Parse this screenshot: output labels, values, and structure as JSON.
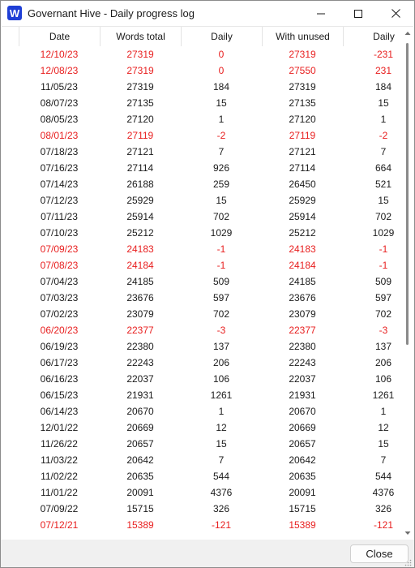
{
  "window": {
    "title": "Governant Hive - Daily progress log",
    "app_icon_letter": "W"
  },
  "table": {
    "columns": [
      "Date",
      "Words total",
      "Daily",
      "With unused",
      "Daily"
    ],
    "rows": [
      {
        "date": "12/10/23",
        "total": "27319",
        "daily": "0",
        "with_unused": "27319",
        "daily_unused": "-231",
        "highlight": true
      },
      {
        "date": "12/08/23",
        "total": "27319",
        "daily": "0",
        "with_unused": "27550",
        "daily_unused": "231",
        "highlight": true
      },
      {
        "date": "11/05/23",
        "total": "27319",
        "daily": "184",
        "with_unused": "27319",
        "daily_unused": "184",
        "highlight": false
      },
      {
        "date": "08/07/23",
        "total": "27135",
        "daily": "15",
        "with_unused": "27135",
        "daily_unused": "15",
        "highlight": false
      },
      {
        "date": "08/05/23",
        "total": "27120",
        "daily": "1",
        "with_unused": "27120",
        "daily_unused": "1",
        "highlight": false
      },
      {
        "date": "08/01/23",
        "total": "27119",
        "daily": "-2",
        "with_unused": "27119",
        "daily_unused": "-2",
        "highlight": true
      },
      {
        "date": "07/18/23",
        "total": "27121",
        "daily": "7",
        "with_unused": "27121",
        "daily_unused": "7",
        "highlight": false
      },
      {
        "date": "07/16/23",
        "total": "27114",
        "daily": "926",
        "with_unused": "27114",
        "daily_unused": "664",
        "highlight": false
      },
      {
        "date": "07/14/23",
        "total": "26188",
        "daily": "259",
        "with_unused": "26450",
        "daily_unused": "521",
        "highlight": false
      },
      {
        "date": "07/12/23",
        "total": "25929",
        "daily": "15",
        "with_unused": "25929",
        "daily_unused": "15",
        "highlight": false
      },
      {
        "date": "07/11/23",
        "total": "25914",
        "daily": "702",
        "with_unused": "25914",
        "daily_unused": "702",
        "highlight": false
      },
      {
        "date": "07/10/23",
        "total": "25212",
        "daily": "1029",
        "with_unused": "25212",
        "daily_unused": "1029",
        "highlight": false
      },
      {
        "date": "07/09/23",
        "total": "24183",
        "daily": "-1",
        "with_unused": "24183",
        "daily_unused": "-1",
        "highlight": true
      },
      {
        "date": "07/08/23",
        "total": "24184",
        "daily": "-1",
        "with_unused": "24184",
        "daily_unused": "-1",
        "highlight": true
      },
      {
        "date": "07/04/23",
        "total": "24185",
        "daily": "509",
        "with_unused": "24185",
        "daily_unused": "509",
        "highlight": false
      },
      {
        "date": "07/03/23",
        "total": "23676",
        "daily": "597",
        "with_unused": "23676",
        "daily_unused": "597",
        "highlight": false
      },
      {
        "date": "07/02/23",
        "total": "23079",
        "daily": "702",
        "with_unused": "23079",
        "daily_unused": "702",
        "highlight": false
      },
      {
        "date": "06/20/23",
        "total": "22377",
        "daily": "-3",
        "with_unused": "22377",
        "daily_unused": "-3",
        "highlight": true
      },
      {
        "date": "06/19/23",
        "total": "22380",
        "daily": "137",
        "with_unused": "22380",
        "daily_unused": "137",
        "highlight": false
      },
      {
        "date": "06/17/23",
        "total": "22243",
        "daily": "206",
        "with_unused": "22243",
        "daily_unused": "206",
        "highlight": false
      },
      {
        "date": "06/16/23",
        "total": "22037",
        "daily": "106",
        "with_unused": "22037",
        "daily_unused": "106",
        "highlight": false
      },
      {
        "date": "06/15/23",
        "total": "21931",
        "daily": "1261",
        "with_unused": "21931",
        "daily_unused": "1261",
        "highlight": false
      },
      {
        "date": "06/14/23",
        "total": "20670",
        "daily": "1",
        "with_unused": "20670",
        "daily_unused": "1",
        "highlight": false
      },
      {
        "date": "12/01/22",
        "total": "20669",
        "daily": "12",
        "with_unused": "20669",
        "daily_unused": "12",
        "highlight": false
      },
      {
        "date": "11/26/22",
        "total": "20657",
        "daily": "15",
        "with_unused": "20657",
        "daily_unused": "15",
        "highlight": false
      },
      {
        "date": "11/03/22",
        "total": "20642",
        "daily": "7",
        "with_unused": "20642",
        "daily_unused": "7",
        "highlight": false
      },
      {
        "date": "11/02/22",
        "total": "20635",
        "daily": "544",
        "with_unused": "20635",
        "daily_unused": "544",
        "highlight": false
      },
      {
        "date": "11/01/22",
        "total": "20091",
        "daily": "4376",
        "with_unused": "20091",
        "daily_unused": "4376",
        "highlight": false
      },
      {
        "date": "07/09/22",
        "total": "15715",
        "daily": "326",
        "with_unused": "15715",
        "daily_unused": "326",
        "highlight": false
      },
      {
        "date": "07/12/21",
        "total": "15389",
        "daily": "-121",
        "with_unused": "15389",
        "daily_unused": "-121",
        "highlight": true
      }
    ]
  },
  "footer": {
    "close_label": "Close"
  },
  "colors": {
    "highlight_text": "#e81e1e",
    "normal_text": "#1a1a1a",
    "app_icon_bg": "#1f3fd6"
  },
  "icons": {
    "app": "app-logo-icon",
    "minimize": "minimize-icon",
    "maximize": "maximize-icon",
    "close": "close-icon",
    "scroll_up": "scroll-up-arrow-icon",
    "scroll_down": "scroll-down-arrow-icon",
    "resize": "resize-grip-icon"
  }
}
